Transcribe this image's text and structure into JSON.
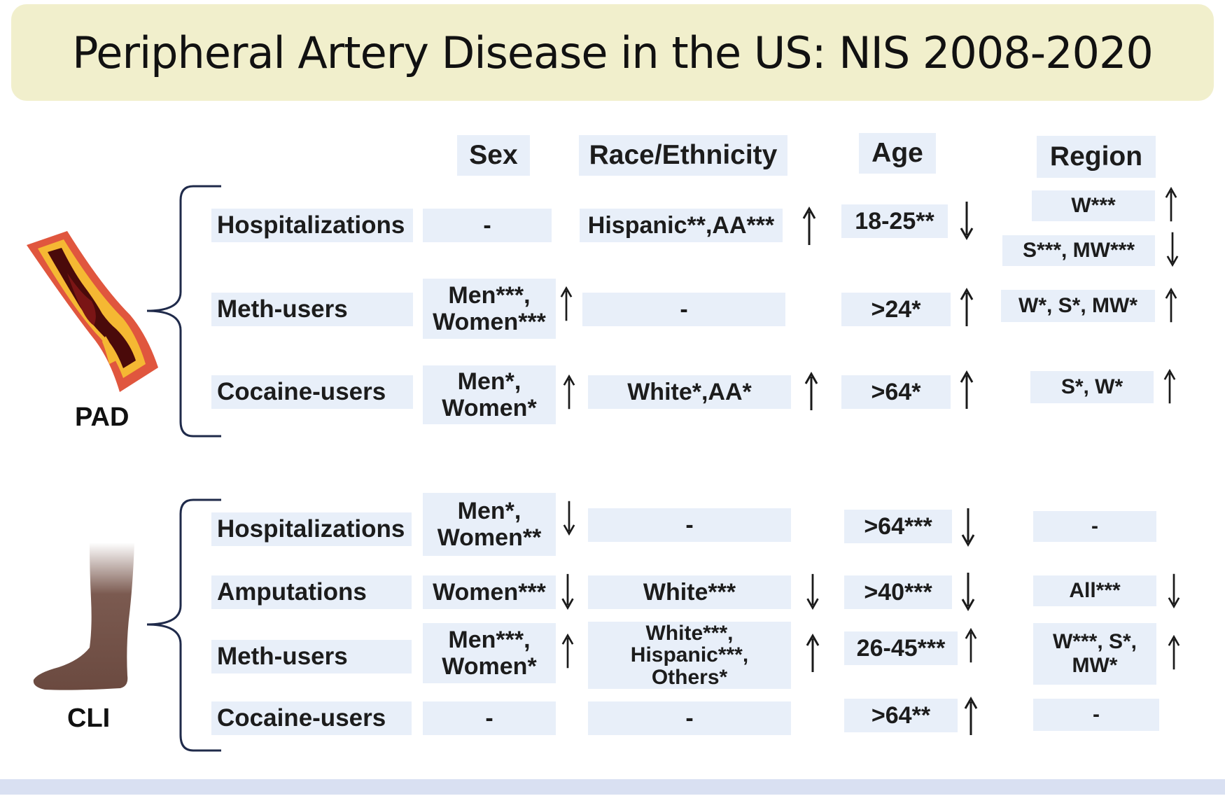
{
  "title": "Peripheral Artery Disease in the US: NIS 2008-2020",
  "columns": {
    "sex": "Sex",
    "race": "Race/Ethnicity",
    "age": "Age",
    "region": "Region"
  },
  "pad": {
    "label": "PAD",
    "rows": {
      "hosp": {
        "label": "Hospitalizations",
        "sex": "-",
        "race": "Hispanic**,AA***",
        "race_arrow": "up",
        "age": "18-25**",
        "age_arrow": "down",
        "region_a": "W***",
        "region_a_arrow": "up",
        "region_b": "S***, MW***",
        "region_b_arrow": "down"
      },
      "meth": {
        "label": "Meth-users",
        "sex_1": "Men***,",
        "sex_2": "Women***",
        "sex_arrow": "up",
        "race": "-",
        "age": ">24*",
        "age_arrow": "up",
        "region": "W*, S*, MW*",
        "region_arrow": "up"
      },
      "cocaine": {
        "label": "Cocaine-users",
        "sex_1": "Men*,",
        "sex_2": "Women*",
        "sex_arrow": "up",
        "race": "White*,AA*",
        "race_arrow": "up",
        "age": ">64*",
        "age_arrow": "up",
        "region": "S*, W*",
        "region_arrow": "up"
      }
    }
  },
  "cli": {
    "label": "CLI",
    "rows": {
      "hosp": {
        "label": "Hospitalizations",
        "sex_1": "Men*,",
        "sex_2": "Women**",
        "sex_arrow": "down",
        "race": "-",
        "age": ">64***",
        "age_arrow": "down",
        "region": "-"
      },
      "amp": {
        "label": "Amputations",
        "sex": "Women***",
        "sex_arrow": "down",
        "race": "White***",
        "race_arrow": "down",
        "age": ">40***",
        "age_arrow": "down",
        "region": "All***",
        "region_arrow": "down"
      },
      "meth": {
        "label": "Meth-users",
        "sex_1": "Men***,",
        "sex_2": "Women*",
        "sex_arrow": "up",
        "race_1": "White***,",
        "race_2": "Hispanic***,",
        "race_3": "Others*",
        "race_arrow": "up",
        "age": "26-45***",
        "age_arrow": "up",
        "region_1": "W***, S*,",
        "region_2": "MW*",
        "region_arrow": "up"
      },
      "cocaine": {
        "label": "Cocaine-users",
        "sex": "-",
        "race": "-",
        "age": ">64**",
        "age_arrow": "up",
        "region": "-"
      }
    }
  },
  "colors": {
    "title_bg": "#f1efcc",
    "cell_bg": "#e8eff9",
    "brace": "#1f2a4a",
    "footer": "#d9e0f2"
  }
}
